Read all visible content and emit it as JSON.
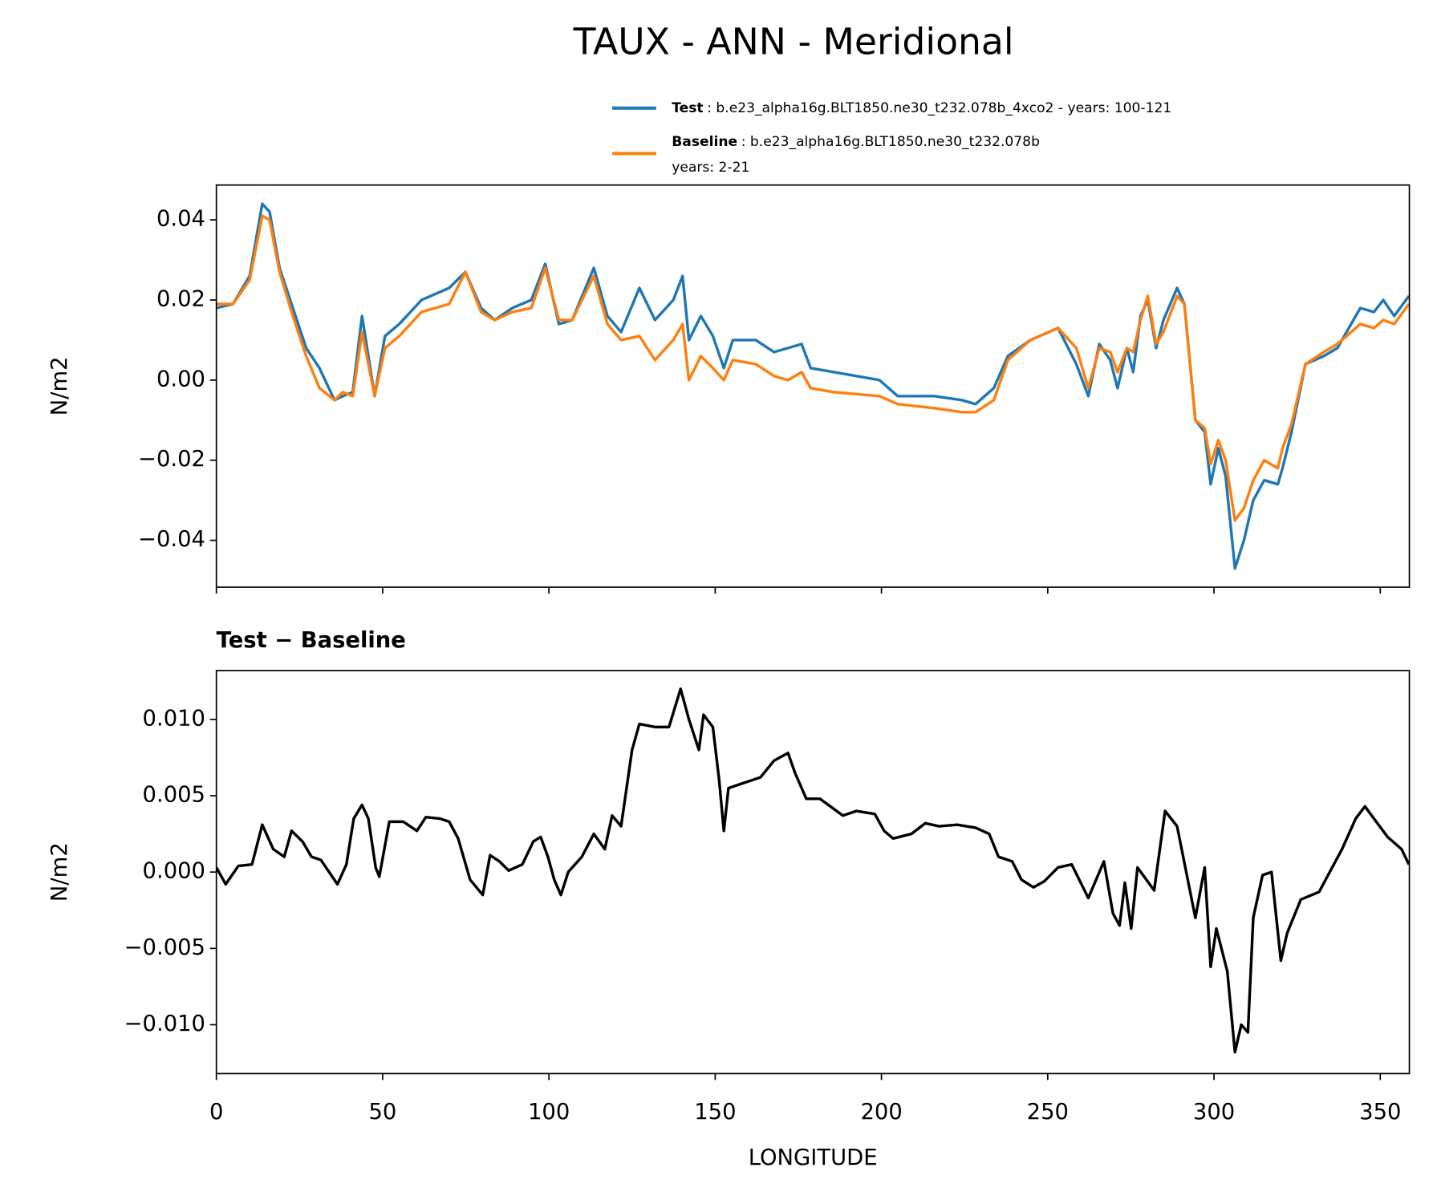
{
  "title": "TAUX - ANN - Meridional",
  "chart_data": [
    {
      "type": "line",
      "ylabel": "N/m2",
      "x": [
        0,
        5,
        10,
        13.8,
        16,
        19,
        23,
        27,
        31,
        35.5,
        38,
        41,
        43.8,
        47.6,
        50.7,
        55,
        61.7,
        70,
        74.9,
        79.6,
        83.7,
        89,
        94.7,
        98.9,
        103,
        107,
        113.5,
        117.6,
        121.7,
        127.2,
        131.9,
        137.4,
        140.2,
        142.1,
        145.7,
        149.3,
        152.6,
        155.3,
        162.2,
        167.7,
        171.9,
        176,
        178.7,
        185.6,
        199.4,
        204.9,
        215.9,
        224.2,
        228.3,
        233.8,
        238,
        244.8,
        253.1,
        258.6,
        262.2,
        265.5,
        268.8,
        271,
        273.8,
        275.7,
        277.9,
        280.1,
        282.6,
        284.8,
        288.9,
        291.1,
        294.4,
        297.2,
        299,
        301.3,
        303.5,
        306.3,
        309,
        311.8,
        315.1,
        319.2,
        320.6,
        323.3,
        327.5,
        333,
        337.1,
        344,
        348.1,
        350.9,
        354.2,
        358.6
      ],
      "series": [
        {
          "name": "Test",
          "description": [
            ": b.e23_alpha16g.BLT1850.ne30_t232.078b_4xco2 - years: 100-121"
          ],
          "color": "#1f77b4",
          "values": [
            0.018,
            0.019,
            0.026,
            0.044,
            0.042,
            0.028,
            0.018,
            0.008,
            0.003,
            -0.005,
            -0.004,
            -0.003,
            0.016,
            -0.004,
            0.011,
            0.014,
            0.02,
            0.023,
            0.027,
            0.018,
            0.015,
            0.018,
            0.02,
            0.029,
            0.014,
            0.015,
            0.028,
            0.016,
            0.012,
            0.023,
            0.015,
            0.02,
            0.026,
            0.01,
            0.016,
            0.011,
            0.003,
            0.01,
            0.01,
            0.007,
            0.008,
            0.009,
            0.003,
            0.002,
            0.0,
            -0.004,
            -0.004,
            -0.005,
            -0.006,
            -0.002,
            0.006,
            0.01,
            0.013,
            0.004,
            -0.004,
            0.009,
            0.005,
            -0.002,
            0.008,
            0.002,
            0.016,
            0.02,
            0.008,
            0.015,
            0.023,
            0.019,
            -0.01,
            -0.013,
            -0.026,
            -0.017,
            -0.024,
            -0.047,
            -0.04,
            -0.03,
            -0.025,
            -0.026,
            -0.022,
            -0.013,
            0.004,
            0.006,
            0.008,
            0.018,
            0.017,
            0.02,
            0.016,
            0.021
          ]
        },
        {
          "name": "Baseline",
          "description": [
            ": b.e23_alpha16g.BLT1850.ne30_t232.078b",
            "years: 2-21"
          ],
          "color": "#ff7f0e",
          "values": [
            0.019,
            0.019,
            0.025,
            0.041,
            0.04,
            0.027,
            0.016,
            0.006,
            -0.002,
            -0.005,
            -0.003,
            -0.004,
            0.012,
            -0.004,
            0.008,
            0.011,
            0.017,
            0.019,
            0.027,
            0.017,
            0.015,
            0.017,
            0.018,
            0.028,
            0.015,
            0.015,
            0.026,
            0.014,
            0.01,
            0.011,
            0.005,
            0.01,
            0.014,
            0.0,
            0.006,
            0.003,
            0.0,
            0.005,
            0.004,
            0.001,
            0.0,
            0.002,
            -0.002,
            -0.003,
            -0.004,
            -0.006,
            -0.007,
            -0.008,
            -0.008,
            -0.005,
            0.005,
            0.01,
            0.013,
            0.008,
            -0.002,
            0.008,
            0.007,
            0.002,
            0.008,
            0.007,
            0.015,
            0.021,
            0.009,
            0.012,
            0.021,
            0.019,
            -0.01,
            -0.012,
            -0.021,
            -0.015,
            -0.02,
            -0.035,
            -0.032,
            -0.025,
            -0.02,
            -0.022,
            -0.017,
            -0.011,
            0.004,
            0.007,
            0.009,
            0.014,
            0.013,
            0.015,
            0.014,
            0.019
          ]
        }
      ],
      "xlim": [
        0,
        358.75
      ],
      "ylim": [
        -0.0517,
        0.0487
      ],
      "xticks": [
        0,
        50,
        100,
        150,
        200,
        250,
        300,
        350
      ],
      "yticks": [
        {
          "value": -0.04,
          "label": "−0.04"
        },
        {
          "value": -0.02,
          "label": "−0.02"
        },
        {
          "value": 0,
          "label": "0.00"
        },
        {
          "value": 0.02,
          "label": "0.02"
        },
        {
          "value": 0.04,
          "label": "0.04"
        }
      ]
    },
    {
      "type": "line",
      "title": "Test − Baseline",
      "xlabel": "LONGITUDE",
      "ylabel": "N/m2",
      "x": [
        0,
        2.8,
        6.6,
        10.7,
        13.8,
        17.1,
        20.4,
        22.6,
        25.9,
        28.6,
        31.4,
        36.4,
        39.1,
        41.3,
        43.8,
        45.7,
        47.9,
        49,
        52,
        56.2,
        60.3,
        63,
        67.2,
        70,
        72.7,
        76.3,
        80.1,
        82.3,
        85.1,
        87.9,
        92,
        95.3,
        97.5,
        99.7,
        101.6,
        103.6,
        105.8,
        109.9,
        113.5,
        116.8,
        119,
        121.7,
        125,
        127.2,
        131.9,
        136.1,
        139.6,
        142.1,
        145.1,
        146.5,
        149.3,
        151.2,
        152.6,
        154,
        158.1,
        163.6,
        167.7,
        171.9,
        174,
        177.4,
        181.5,
        188.4,
        192.5,
        198,
        200.8,
        203.5,
        209,
        213.2,
        217.3,
        222.8,
        228.3,
        232.4,
        235.2,
        239.3,
        242.1,
        245.7,
        249,
        253.1,
        257.2,
        262.2,
        266.9,
        269.6,
        271.6,
        273.2,
        275.1,
        277,
        282,
        285.3,
        288.9,
        294.4,
        297.2,
        299,
        300.7,
        304,
        306.3,
        308.2,
        310.2,
        311.8,
        314.6,
        317.3,
        320.1,
        322,
        326.1,
        331.6,
        338.5,
        342.6,
        345.4,
        348.1,
        352.2,
        356.4,
        358.6
      ],
      "series": [
        {
          "color": "#000000",
          "values": [
            0.0003,
            -0.0008,
            0.0004,
            0.0005,
            0.0031,
            0.0015,
            0.001,
            0.0027,
            0.002,
            0.001,
            0.0008,
            -0.0008,
            0.0005,
            0.0035,
            0.0044,
            0.0035,
            0.0003,
            -0.0003,
            0.0033,
            0.0033,
            0.0027,
            0.0036,
            0.0035,
            0.0033,
            0.0022,
            -0.0005,
            -0.0015,
            0.0011,
            0.0007,
            0.0001,
            0.0005,
            0.002,
            0.0023,
            0.001,
            -0.0005,
            -0.0015,
            0.0,
            0.001,
            0.0025,
            0.0015,
            0.0037,
            0.003,
            0.008,
            0.0097,
            0.0095,
            0.0095,
            0.012,
            0.01,
            0.008,
            0.0103,
            0.0095,
            0.006,
            0.0027,
            0.0055,
            0.0058,
            0.0062,
            0.0073,
            0.0078,
            0.0065,
            0.0048,
            0.0048,
            0.0037,
            0.004,
            0.0038,
            0.0027,
            0.0022,
            0.0025,
            0.0032,
            0.003,
            0.0031,
            0.0029,
            0.0025,
            0.001,
            0.0007,
            -0.0005,
            -0.001,
            -0.0006,
            0.0003,
            0.0005,
            -0.0017,
            0.0007,
            -0.0027,
            -0.0035,
            -0.0007,
            -0.0037,
            0.0003,
            -0.0012,
            0.004,
            0.003,
            -0.003,
            0.0003,
            -0.0062,
            -0.0037,
            -0.0065,
            -0.0118,
            -0.01,
            -0.0105,
            -0.003,
            -0.0002,
            0.0,
            -0.0058,
            -0.004,
            -0.0018,
            -0.0013,
            0.0015,
            0.0035,
            0.0043,
            0.0035,
            0.0023,
            0.0015,
            0.0005
          ]
        }
      ],
      "xlim": [
        0,
        358.75
      ],
      "ylim": [
        -0.0132,
        0.0132
      ],
      "xticks": [
        0,
        50,
        100,
        150,
        200,
        250,
        300,
        350
      ],
      "yticks": [
        {
          "value": -0.01,
          "label": "−0.010"
        },
        {
          "value": -0.005,
          "label": "−0.005"
        },
        {
          "value": 0,
          "label": "0.000"
        },
        {
          "value": 0.005,
          "label": "0.005"
        },
        {
          "value": 0.01,
          "label": "0.010"
        }
      ]
    }
  ]
}
